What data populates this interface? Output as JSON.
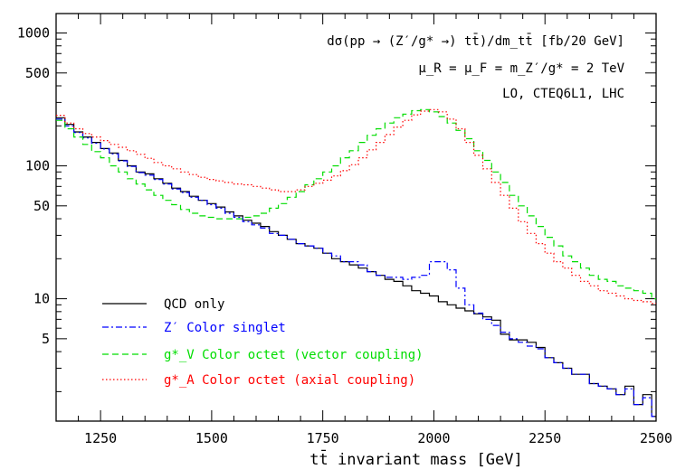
{
  "chart_data": {
    "type": "line",
    "xlabel": "tt̄ invariant mass [GeV]",
    "ylabel": "",
    "x_scale": "linear",
    "y_scale": "log",
    "xlim": [
      1150,
      2500
    ],
    "ylim": [
      1.2,
      1400
    ],
    "x_ticks": [
      1250,
      1500,
      1750,
      2000,
      2250,
      2500
    ],
    "y_ticks": [
      5,
      10,
      50,
      100,
      500,
      1000
    ],
    "y_tick_labels": [
      "5",
      "10",
      "50",
      "100",
      "500",
      "1000"
    ],
    "grid": false,
    "legend_position": "bottom-left",
    "annotations": [
      "dσ(pp → (Z′/g* →) tt̄)/dm_tt̄  [fb/20 GeV]",
      "μ_R = μ_F = m_Z′/g* = 2 TeV",
      "LO, CTEQ6L1, LHC"
    ],
    "bin_edges": [
      1150,
      1170,
      1190,
      1210,
      1230,
      1250,
      1270,
      1290,
      1310,
      1330,
      1350,
      1370,
      1390,
      1410,
      1430,
      1450,
      1470,
      1490,
      1510,
      1530,
      1550,
      1570,
      1590,
      1610,
      1630,
      1650,
      1670,
      1690,
      1710,
      1730,
      1750,
      1770,
      1790,
      1810,
      1830,
      1850,
      1870,
      1890,
      1910,
      1930,
      1950,
      1970,
      1990,
      2010,
      2030,
      2050,
      2070,
      2090,
      2110,
      2130,
      2150,
      2170,
      2190,
      2210,
      2230,
      2250,
      2270,
      2290,
      2310,
      2330,
      2350,
      2370,
      2390,
      2410,
      2430,
      2450,
      2470,
      2490,
      2500
    ],
    "series": [
      {
        "name": "QCD only",
        "color": "#000000",
        "dash": "solid",
        "values": [
          230,
          205,
          180,
          165,
          150,
          135,
          125,
          110,
          100,
          90,
          87,
          80,
          74,
          68,
          64,
          59,
          55,
          52,
          49,
          45,
          42,
          39,
          37,
          35,
          32,
          30,
          28,
          26,
          25,
          24,
          22,
          20,
          19,
          18,
          17,
          16,
          15,
          14,
          13.5,
          12.5,
          11.5,
          11,
          10.5,
          9.5,
          9,
          8.5,
          8.1,
          7.7,
          7.3,
          6.9,
          5.4,
          4.9,
          4.9,
          4.7,
          4.3,
          3.6,
          3.3,
          3.0,
          2.7,
          2.7,
          2.3,
          2.2,
          2.1,
          1.9,
          2.2,
          1.6,
          1.9,
          1.3
        ]
      },
      {
        "name": "Z′ Color singlet",
        "color": "#0000ff",
        "dash": "dashdot",
        "values": [
          225,
          200,
          178,
          162,
          148,
          134,
          123,
          109,
          99,
          89,
          85,
          79,
          73,
          67,
          63,
          58,
          55,
          51,
          48,
          44,
          41,
          38,
          36,
          34,
          31,
          30,
          28,
          26,
          25,
          24,
          22,
          21,
          19,
          19,
          18,
          16,
          15,
          14.5,
          14.5,
          14,
          14.5,
          15,
          19,
          19,
          16.5,
          12,
          9,
          7.8,
          7.0,
          6.3,
          5.6,
          5.0,
          4.7,
          4.4,
          4.2,
          3.6,
          3.3,
          3.0,
          2.7,
          2.7,
          2.3,
          2.2,
          2.1,
          1.9,
          2.1,
          1.6,
          1.8,
          1.3
        ]
      },
      {
        "name": "g*_V Color octet (vector coupling)",
        "color": "#00dd00",
        "dash": "dash",
        "values": [
          220,
          190,
          165,
          145,
          128,
          115,
          100,
          90,
          80,
          73,
          66,
          60,
          55,
          51,
          47,
          44,
          42,
          41,
          40,
          40,
          40,
          41,
          42,
          44,
          48,
          52,
          58,
          64,
          72,
          80,
          90,
          100,
          115,
          130,
          150,
          170,
          190,
          210,
          230,
          245,
          260,
          265,
          255,
          235,
          210,
          185,
          160,
          130,
          110,
          90,
          75,
          60,
          50,
          42,
          35,
          29,
          25,
          21,
          19,
          17,
          15,
          14,
          13.5,
          12.5,
          12,
          11.5,
          11,
          10
        ]
      },
      {
        "name": "g*_A Color octet (axial coupling)",
        "color": "#ff0000",
        "dash": "dot",
        "values": [
          240,
          210,
          190,
          175,
          165,
          155,
          145,
          138,
          130,
          122,
          114,
          106,
          100,
          95,
          90,
          86,
          82,
          79,
          77,
          75,
          73,
          72,
          70,
          68,
          66,
          64,
          64,
          66,
          70,
          74,
          78,
          84,
          92,
          102,
          115,
          132,
          150,
          172,
          196,
          220,
          242,
          258,
          265,
          255,
          225,
          190,
          150,
          120,
          95,
          75,
          60,
          48,
          38,
          31,
          26,
          22,
          19,
          17,
          15,
          13.5,
          12.5,
          11.5,
          11,
          10.5,
          10,
          9.7,
          9.5,
          9.2
        ]
      }
    ]
  }
}
